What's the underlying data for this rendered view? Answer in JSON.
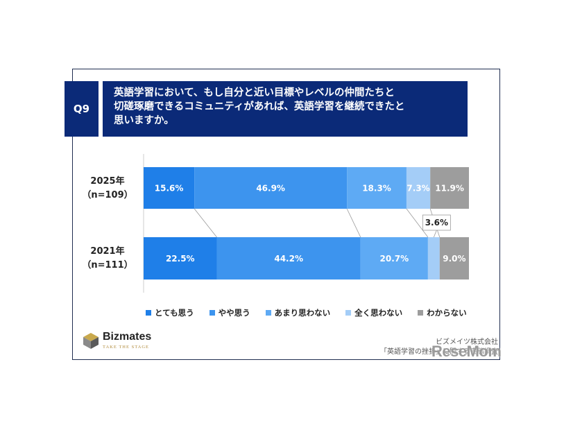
{
  "question": {
    "tag": "Q9",
    "lines": [
      "英語学習において、もし自分と近い目標やレベルの仲間たちと",
      "切磋琢磨できるコミュニティがあれば、英語学習を継続できたと",
      "思いますか。"
    ]
  },
  "chart_data": {
    "type": "bar",
    "orientation": "horizontal-stacked-100",
    "categories": [
      {
        "year": "2025年",
        "n": "（n=109）"
      },
      {
        "year": "2021年",
        "n": "（n=111）"
      }
    ],
    "series": [
      {
        "name": "とても思う",
        "color": "#1f7fe8",
        "values": [
          15.6,
          22.5
        ],
        "labels": [
          "15.6%",
          "22.5%"
        ]
      },
      {
        "name": "やや思う",
        "color": "#3d94ee",
        "values": [
          46.9,
          44.2
        ],
        "labels": [
          "46.9%",
          "44.2%"
        ]
      },
      {
        "name": "あまり思わない",
        "color": "#5eaaf4",
        "values": [
          18.3,
          20.7
        ],
        "labels": [
          "18.3%",
          "20.7%"
        ]
      },
      {
        "name": "全く思わない",
        "color": "#a4cdf7",
        "values": [
          7.3,
          3.6
        ],
        "labels": [
          "7.3%",
          "3.6%"
        ]
      },
      {
        "name": "わからない",
        "color": "#9d9d9d",
        "values": [
          11.9,
          9.0
        ],
        "labels": [
          "11.9%",
          "9.0%"
        ]
      }
    ]
  },
  "footer": {
    "brand": "Bizmates",
    "tagline": "TAKE THE STAGE",
    "company": "ビズメイツ株式会社",
    "source": "「英語学習の挫折」に関する実態調査",
    "watermark": "ReseMom"
  }
}
